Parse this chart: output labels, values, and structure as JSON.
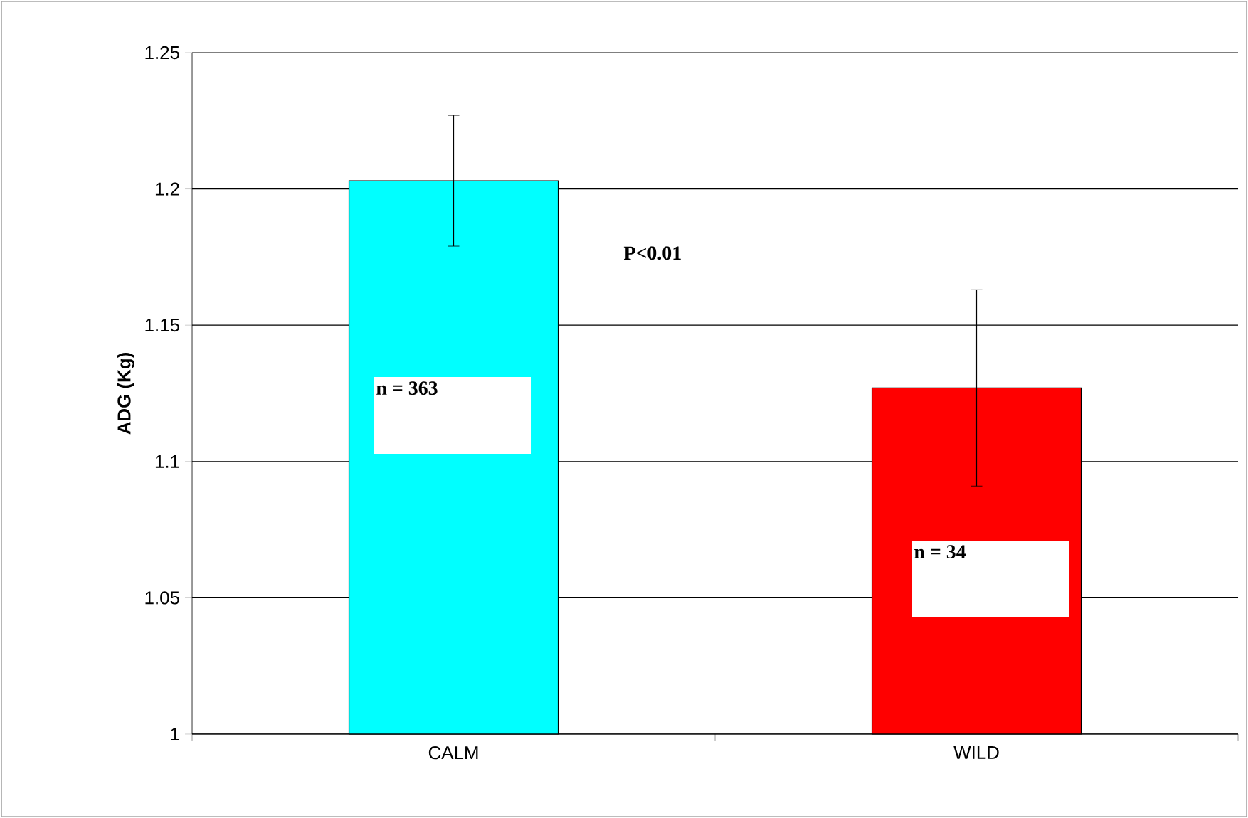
{
  "chart_data": {
    "type": "bar",
    "ylabel": "ADG (Kg)",
    "categories": [
      "CALM",
      "WILD"
    ],
    "values": [
      1.203,
      1.127
    ],
    "colors": [
      "#00ffff",
      "#ff0000"
    ],
    "errors": [
      0.024,
      0.036
    ],
    "ylim": [
      1,
      1.25
    ],
    "yticks": [
      1,
      1.05,
      1.1,
      1.15,
      1.2,
      1.25
    ],
    "grid": "y",
    "annotations": [
      "P<0.01",
      "n = 363",
      "n = 34"
    ]
  }
}
